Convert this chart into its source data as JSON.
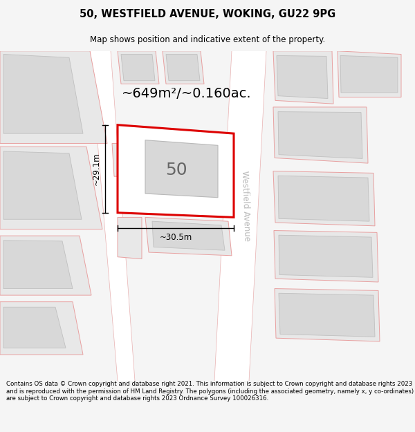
{
  "title": "50, WESTFIELD AVENUE, WOKING, GU22 9PG",
  "subtitle": "Map shows position and indicative extent of the property.",
  "area_text": "~649m²/~0.160ac.",
  "width_label": "~30.5m",
  "height_label": "~29.1m",
  "property_number": "50",
  "footer": "Contains OS data © Crown copyright and database right 2021. This information is subject to Crown copyright and database rights 2023 and is reproduced with the permission of HM Land Registry. The polygons (including the associated geometry, namely x, y co-ordinates) are subject to Crown copyright and database rights 2023 Ordnance Survey 100026316.",
  "bg_color": "#f5f5f5",
  "map_bg": "#ffffff",
  "property_fill": "#ffffff",
  "property_edge": "#dd0000",
  "plot_fill": "#e8e8e8",
  "plot_edge": "#e8a0a0",
  "building_fill": "#d8d8d8",
  "building_edge": "#c0c0c0",
  "road_fill": "#ffffff",
  "road_edge": "#e0a0a0",
  "street_label_color": "#c0c0c0"
}
